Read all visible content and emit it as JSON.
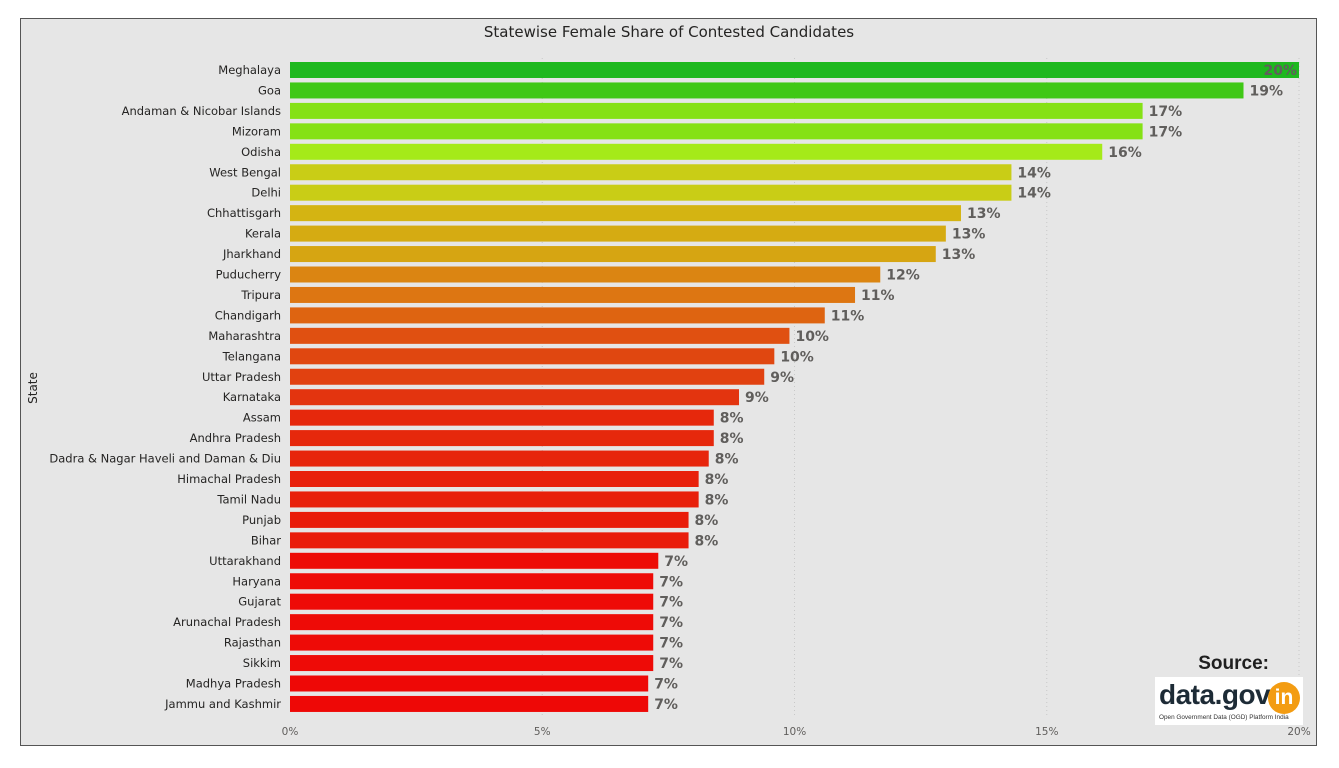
{
  "chart_data": {
    "type": "bar",
    "orientation": "horizontal",
    "title": "Statewise Female Share of Contested Candidates",
    "xlabel": "",
    "ylabel": "State",
    "xlim": [
      0,
      20
    ],
    "xticks": [
      "0%",
      "5%",
      "10%",
      "15%",
      "20%"
    ],
    "grid": true,
    "categories": [
      "Meghalaya",
      "Goa",
      "Andaman & Nicobar Islands",
      "Mizoram",
      "Odisha",
      "West Bengal",
      "Delhi",
      "Chhattisgarh",
      "Kerala",
      "Jharkhand",
      "Puducherry",
      "Tripura",
      "Chandigarh",
      "Maharashtra",
      "Telangana",
      "Uttar Pradesh",
      "Karnataka",
      "Assam",
      "Andhra Pradesh",
      "Dadra & Nagar Haveli and Daman & Diu",
      "Himachal Pradesh",
      "Tamil Nadu",
      "Punjab",
      "Bihar",
      "Uttarakhand",
      "Haryana",
      "Gujarat",
      "Arunachal Pradesh",
      "Rajasthan",
      "Sikkim",
      "Madhya Pradesh",
      "Jammu and Kashmir"
    ],
    "values": [
      20.0,
      18.9,
      16.9,
      16.9,
      16.1,
      14.3,
      14.3,
      13.3,
      13.0,
      12.8,
      11.7,
      11.2,
      10.6,
      9.9,
      9.6,
      9.4,
      8.9,
      8.4,
      8.4,
      8.3,
      8.1,
      8.1,
      7.9,
      7.9,
      7.3,
      7.2,
      7.2,
      7.2,
      7.2,
      7.2,
      7.1,
      7.1
    ],
    "data_labels": [
      "20%",
      "19%",
      "17%",
      "17%",
      "16%",
      "14%",
      "14%",
      "13%",
      "13%",
      "13%",
      "12%",
      "11%",
      "11%",
      "10%",
      "10%",
      "9%",
      "9%",
      "8%",
      "8%",
      "8%",
      "8%",
      "8%",
      "8%",
      "8%",
      "7%",
      "7%",
      "7%",
      "7%",
      "7%",
      "7%",
      "7%",
      "7%"
    ],
    "color_scale": [
      "#ef0606",
      "#e13a10",
      "#dd7a12",
      "#d3ba12",
      "#b7ee1c",
      "#5fd80f",
      "#1eb81e"
    ]
  },
  "source": {
    "label": "Source:",
    "logo_text": "data.gov",
    "logo_badge": "in",
    "logo_tagline": "Open Government Data (OGD) Platform India"
  }
}
